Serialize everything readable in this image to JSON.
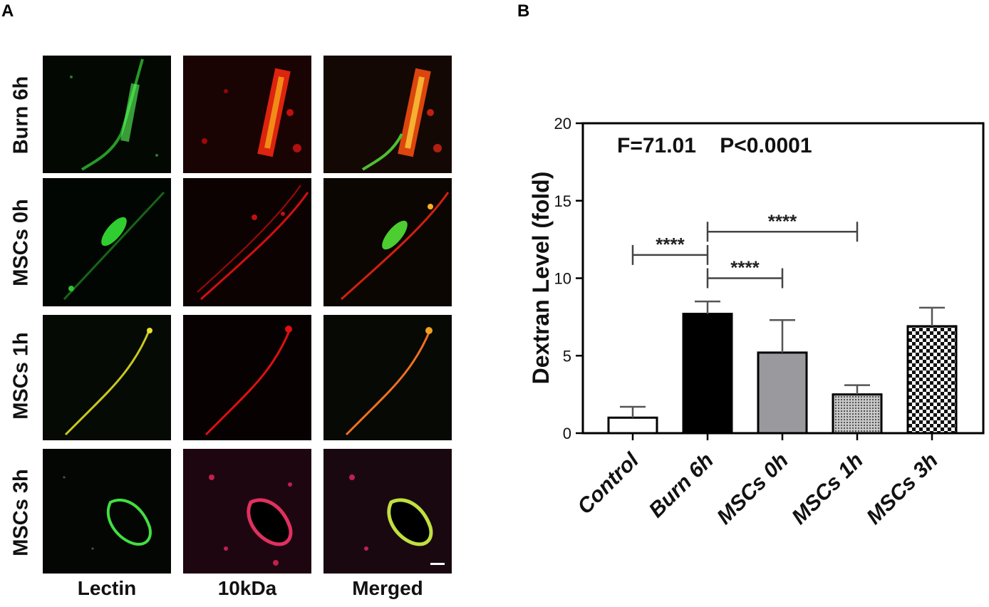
{
  "panel_a": {
    "label": "A",
    "rows": [
      "Burn 6h",
      "MSCs 0h",
      "MSCs 1h",
      "MSCs 3h"
    ],
    "columns": [
      "Lectin",
      "10kDa",
      "Merged"
    ]
  },
  "panel_b": {
    "label": "B"
  },
  "chart_data": {
    "type": "bar",
    "categories": [
      "Control",
      "Burn 6h",
      "MSCs 0h",
      "MSCs 1h",
      "MSCs 3h"
    ],
    "values": [
      1.0,
      7.7,
      5.2,
      2.5,
      6.9
    ],
    "errors": [
      0.7,
      0.8,
      2.1,
      0.6,
      1.2
    ],
    "bar_fills": [
      "white",
      "black",
      "gray",
      "dots",
      "checker"
    ],
    "title": "",
    "annotation": "F=71.01    P<0.0001",
    "xlabel": "",
    "ylabel": "Dextran Level (fold)",
    "ylim": [
      0,
      20
    ],
    "yticks": [
      0,
      5,
      10,
      15,
      20
    ],
    "grid": false,
    "significance": [
      {
        "from": "Control",
        "to": "Burn 6h",
        "y": 11.5,
        "label": "****"
      },
      {
        "from": "Burn 6h",
        "to": "MSCs 0h",
        "y": 10.0,
        "label": "****"
      },
      {
        "from": "Burn 6h",
        "to": "MSCs 1h",
        "y": 13.0,
        "label": "****"
      }
    ]
  }
}
